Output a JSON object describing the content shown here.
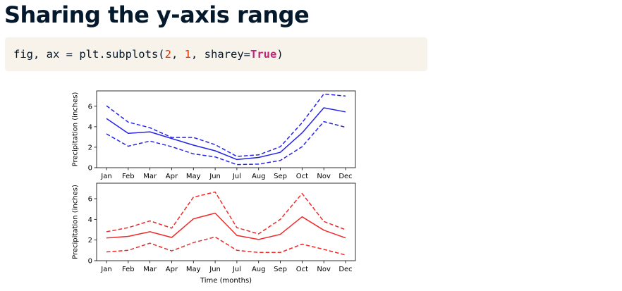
{
  "page": {
    "title": "Sharing the y-axis range",
    "code": {
      "prefix": "fig, ax = plt.subplots(",
      "arg1": "2",
      "sep1": ", ",
      "arg2": "1",
      "sep2": ", sharey=",
      "kw": "True",
      "suffix": ")"
    }
  },
  "chart_data": [
    {
      "type": "line",
      "categories": [
        "Jan",
        "Feb",
        "Mar",
        "Apr",
        "May",
        "Jun",
        "Jul",
        "Aug",
        "Sep",
        "Oct",
        "Nov",
        "Dec"
      ],
      "series": [
        {
          "style": "solid",
          "values": [
            4.8,
            3.35,
            3.5,
            2.85,
            2.2,
            1.65,
            0.8,
            1.0,
            1.5,
            3.4,
            5.85,
            5.45
          ]
        },
        {
          "style": "dashed",
          "values": [
            6.05,
            4.45,
            3.9,
            2.95,
            2.95,
            2.25,
            1.1,
            1.25,
            2.05,
            4.4,
            7.2,
            7.0
          ]
        },
        {
          "style": "dashed",
          "values": [
            3.3,
            2.1,
            2.6,
            2.05,
            1.35,
            1.05,
            0.3,
            0.35,
            0.7,
            2.05,
            4.5,
            3.95
          ]
        }
      ],
      "color": "#2424e8",
      "ylabel": "Precipitation (inches)",
      "xlabel": "",
      "yticks": [
        0,
        2,
        4,
        6
      ],
      "ylim": [
        0,
        7.5
      ]
    },
    {
      "type": "line",
      "categories": [
        "Jan",
        "Feb",
        "Mar",
        "Apr",
        "May",
        "Jun",
        "Jul",
        "Aug",
        "Sep",
        "Oct",
        "Nov",
        "Dec"
      ],
      "series": [
        {
          "style": "solid",
          "values": [
            2.2,
            2.35,
            2.8,
            2.25,
            4.05,
            4.6,
            2.45,
            2.05,
            2.55,
            4.25,
            2.95,
            2.2
          ]
        },
        {
          "style": "dashed",
          "values": [
            2.8,
            3.2,
            3.85,
            3.15,
            6.15,
            6.65,
            3.2,
            2.6,
            4.0,
            6.5,
            3.8,
            3.0
          ]
        },
        {
          "style": "dashed",
          "values": [
            0.85,
            1.0,
            1.7,
            0.95,
            1.75,
            2.3,
            1.0,
            0.8,
            0.8,
            1.6,
            1.1,
            0.55
          ]
        }
      ],
      "color": "#ef2a2a",
      "ylabel": "Precipitation (inches)",
      "xlabel": "Time (months)",
      "yticks": [
        0,
        2,
        4,
        6
      ],
      "ylim": [
        0,
        7.5
      ]
    }
  ]
}
